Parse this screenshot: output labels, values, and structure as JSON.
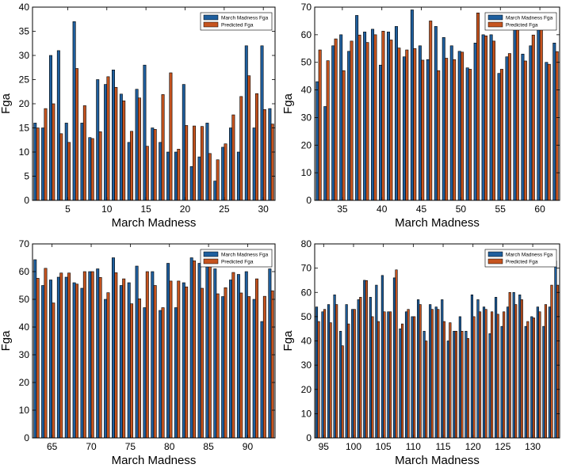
{
  "colors": {
    "series1": "#1f5f9e",
    "series2": "#c6541f",
    "edge": "#000000"
  },
  "chart_data": [
    {
      "type": "bar",
      "xlabel": "March Madness",
      "ylabel": "Fga",
      "xlim": [
        0.5,
        31.5
      ],
      "ylim": [
        0,
        40
      ],
      "xticks": [
        5,
        10,
        15,
        20,
        25,
        30
      ],
      "yticks": [
        0,
        5,
        10,
        15,
        20,
        25,
        30,
        35,
        40
      ],
      "legend_position": "top-right",
      "grid": false,
      "x": [
        1,
        2,
        3,
        4,
        5,
        6,
        7,
        8,
        9,
        10,
        11,
        12,
        13,
        14,
        15,
        16,
        17,
        18,
        19,
        20,
        21,
        22,
        23,
        24,
        25,
        26,
        27,
        28,
        29,
        30,
        31
      ],
      "series": [
        {
          "name": "March Madness Fga",
          "values": [
            16,
            15,
            30,
            31,
            16,
            37,
            16,
            13,
            25,
            24,
            27,
            22,
            12,
            23,
            28,
            15,
            12,
            10,
            10,
            24,
            7,
            9,
            16,
            4,
            11,
            15,
            10,
            32,
            15,
            32,
            19
          ]
        },
        {
          "name": "Predicted Fga",
          "values": [
            15,
            19,
            20,
            13.8,
            12,
            27.3,
            19.6,
            12.8,
            14.2,
            25.6,
            23.4,
            20.6,
            14.3,
            21.2,
            11.2,
            14.7,
            21.9,
            26.4,
            10.6,
            15.5,
            15.4,
            15.3,
            9.7,
            8.4,
            11.7,
            17.7,
            21.5,
            25.8,
            22.1,
            18.8,
            15.8
          ]
        }
      ]
    },
    {
      "type": "bar",
      "xlabel": "March Madness",
      "ylabel": "Fga",
      "xlim": [
        31.5,
        62.5
      ],
      "ylim": [
        0,
        70
      ],
      "xticks": [
        35,
        40,
        45,
        50,
        55,
        60
      ],
      "yticks": [
        0,
        10,
        20,
        30,
        40,
        50,
        60,
        70
      ],
      "legend_position": "top-right",
      "grid": false,
      "x": [
        32,
        33,
        34,
        35,
        36,
        37,
        38,
        39,
        40,
        41,
        42,
        43,
        44,
        45,
        46,
        47,
        48,
        49,
        50,
        51,
        52,
        53,
        54,
        55,
        56,
        57,
        58,
        59,
        60,
        61,
        62
      ],
      "series": [
        {
          "name": "March Madness Fga",
          "values": [
            43,
            34,
            56,
            60,
            54,
            67,
            61,
            62,
            49,
            61,
            63,
            52,
            69,
            56,
            51,
            63,
            59,
            56,
            54,
            48,
            57,
            60,
            60,
            46,
            52,
            64,
            53,
            56,
            65,
            50,
            57
          ]
        },
        {
          "name": "Predicted Fga",
          "values": [
            54.5,
            50.6,
            58.5,
            47,
            57.7,
            59.9,
            57.2,
            60,
            61.3,
            58.1,
            55.2,
            54.5,
            55,
            50.8,
            65,
            47,
            51.5,
            51,
            53.7,
            47.5,
            67.9,
            59.6,
            57.7,
            47.5,
            53.2,
            63.3,
            50.5,
            59.9,
            63,
            49.3,
            53.9
          ]
        }
      ]
    },
    {
      "type": "bar",
      "xlabel": "March Madness",
      "ylabel": "Fga",
      "xlim": [
        62.5,
        93.5
      ],
      "ylim": [
        0,
        70
      ],
      "xticks": [
        65,
        70,
        75,
        80,
        85,
        90
      ],
      "yticks": [
        0,
        10,
        20,
        30,
        40,
        50,
        60,
        70
      ],
      "legend_position": "top-right",
      "grid": false,
      "x": [
        63,
        64,
        65,
        66,
        67,
        68,
        69,
        70,
        71,
        72,
        73,
        74,
        75,
        76,
        77,
        78,
        79,
        80,
        81,
        82,
        83,
        84,
        85,
        86,
        87,
        88,
        89,
        90,
        91,
        92,
        93
      ],
      "series": [
        {
          "name": "March Madness Fga",
          "values": [
            64.3,
            55,
            57,
            58,
            58,
            56,
            54,
            60,
            61,
            50,
            65,
            55,
            56,
            62,
            47,
            60,
            46,
            63,
            47,
            56,
            65,
            63,
            63,
            61,
            51,
            57,
            59,
            60,
            50,
            42,
            61
          ]
        },
        {
          "name": "Predicted Fga",
          "values": [
            57.6,
            61.2,
            48.7,
            59.5,
            59.5,
            55.5,
            60,
            60,
            57.9,
            52.4,
            59.6,
            57.4,
            48.4,
            50.2,
            60,
            55,
            47,
            56.6,
            56.6,
            54.5,
            63.9,
            54,
            65,
            52,
            54.2,
            59.7,
            52.3,
            51,
            57.4,
            51.1,
            53.1
          ]
        }
      ]
    },
    {
      "type": "bar",
      "xlabel": "March Madness",
      "ylabel": "Fga",
      "xlim": [
        93.5,
        134.5
      ],
      "ylim": [
        0,
        80
      ],
      "xticks": [
        95,
        100,
        105,
        110,
        115,
        120,
        125,
        130
      ],
      "yticks": [
        0,
        10,
        20,
        30,
        40,
        50,
        60,
        70,
        80
      ],
      "legend_position": "top-right",
      "grid": false,
      "x": [
        94,
        95,
        96,
        97,
        98,
        99,
        100,
        101,
        102,
        103,
        104,
        105,
        106,
        107,
        108,
        109,
        110,
        111,
        112,
        113,
        114,
        115,
        116,
        117,
        118,
        119,
        120,
        121,
        122,
        123,
        124,
        125,
        126,
        127,
        128,
        129,
        130,
        131,
        132,
        133,
        134
      ],
      "series": [
        {
          "name": "March Madness Fga",
          "values": [
            54,
            52,
            55,
            59,
            44,
            55,
            53,
            57,
            65,
            58,
            63,
            67,
            52,
            66,
            45,
            52,
            50,
            57,
            44,
            55,
            54,
            57,
            40,
            44,
            50,
            44,
            59,
            57,
            54,
            43,
            58,
            46,
            54,
            60,
            59,
            46,
            50,
            54,
            46,
            54,
            73
          ]
        },
        {
          "name": "Predicted Fga",
          "values": [
            48,
            53,
            47.5,
            55,
            38,
            47,
            53,
            58,
            64.9,
            50,
            48,
            52,
            52,
            69.3,
            47,
            53,
            50,
            55,
            40,
            53,
            53,
            48,
            47.5,
            44,
            44,
            41,
            50,
            52,
            53,
            52,
            51,
            52,
            60,
            55,
            57,
            48,
            49.5,
            52,
            55,
            63,
            63
          ]
        }
      ]
    }
  ]
}
